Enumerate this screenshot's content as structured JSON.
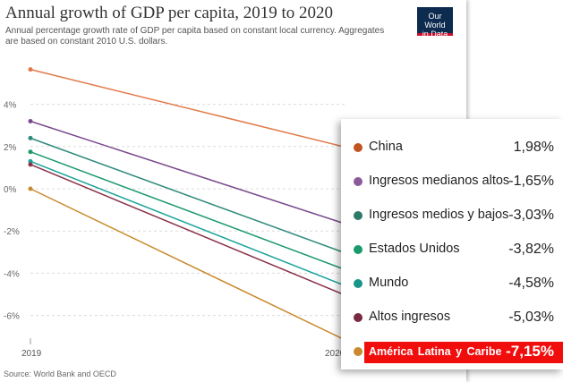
{
  "title": "Annual growth of GDP per capita, 2019 to 2020",
  "subtitle": "Annual percentage growth rate of GDP per capita based on constant local currency. Aggregates are based on constant 2010 U.S. dollars.",
  "logo": {
    "line1": "Our World",
    "line2": "in Data"
  },
  "source": "Source: World Bank and OECD",
  "chart_data": {
    "type": "line",
    "x": [
      "2019",
      "2020"
    ],
    "y_ticks": [
      "4%",
      "2%",
      "0%",
      "-2%",
      "-4%",
      "-6%"
    ],
    "ylim": [
      -7.15,
      5.6
    ],
    "grid": true,
    "series": [
      {
        "name": "",
        "color": "#e07a4a",
        "values": [
          5.65,
          1.98
        ]
      },
      {
        "name": "",
        "color": "#7a4a8c",
        "values": [
          3.2,
          -1.65
        ]
      },
      {
        "name": "",
        "color": "#2e8a7a",
        "values": [
          2.4,
          -3.03
        ]
      },
      {
        "name": "",
        "color": "#1a9a6a",
        "values": [
          1.75,
          -3.82
        ]
      },
      {
        "name": "",
        "color": "#1aa39a",
        "values": [
          1.3,
          -4.58
        ]
      },
      {
        "name": "",
        "color": "#8a3048",
        "values": [
          1.15,
          -5.03
        ]
      },
      {
        "name": "",
        "color": "#c98a2e",
        "values": [
          0.0,
          -7.15
        ]
      }
    ]
  },
  "legend": [
    {
      "name": "China",
      "value": "1,98%",
      "color": "#c0531f",
      "highlight": false
    },
    {
      "name": "Ingresos medianos altos",
      "value": "-1,65%",
      "color": "#8a5a9a",
      "highlight": false
    },
    {
      "name": "Ingresos medios y bajos",
      "value": "-3,03%",
      "color": "#2e7a6a",
      "highlight": false
    },
    {
      "name": "Estados Unidos",
      "value": "-3,82%",
      "color": "#1a9a6a",
      "highlight": false
    },
    {
      "name": "Mundo",
      "value": "-4,58%",
      "color": "#17958a",
      "highlight": false
    },
    {
      "name": "Altos ingresos",
      "value": "-5,03%",
      "color": "#7a2a40",
      "highlight": false
    },
    {
      "name": "América Latina y Caribe",
      "value": "-7,15%",
      "color": "#c98a2e",
      "highlight": true
    }
  ]
}
